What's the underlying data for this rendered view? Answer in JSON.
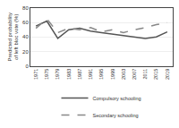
{
  "chart_data": {
    "type": "line",
    "ylabel": "Predicted probability of left bloc vote (%)",
    "x": [
      1971,
      1975,
      1979,
      1983,
      1987,
      1991,
      1995,
      1999,
      2003,
      2007,
      2011,
      2015,
      2019
    ],
    "series": [
      {
        "name": "Compulsory schooling",
        "color": "#555555",
        "line_style": "solid",
        "values": [
          55,
          62,
          38,
          50,
          52,
          48,
          46,
          44,
          42,
          40,
          38,
          40,
          47
        ]
      },
      {
        "name": "Secondary schooling",
        "color": "#888888",
        "line_style": "dashed",
        "values": [
          52,
          65,
          46,
          52,
          50,
          53,
          47,
          50,
          46,
          50,
          53,
          57,
          60
        ]
      }
    ],
    "xlim": [
      1969,
      2021
    ],
    "xticks": [
      1971,
      1975,
      1979,
      1983,
      1987,
      1991,
      1995,
      1999,
      2003,
      2007,
      2011,
      2015,
      2019
    ],
    "ylim": [
      0,
      80
    ],
    "yticks": [
      0,
      20,
      40,
      60,
      80
    ],
    "grid": true,
    "legend": "bottom"
  }
}
